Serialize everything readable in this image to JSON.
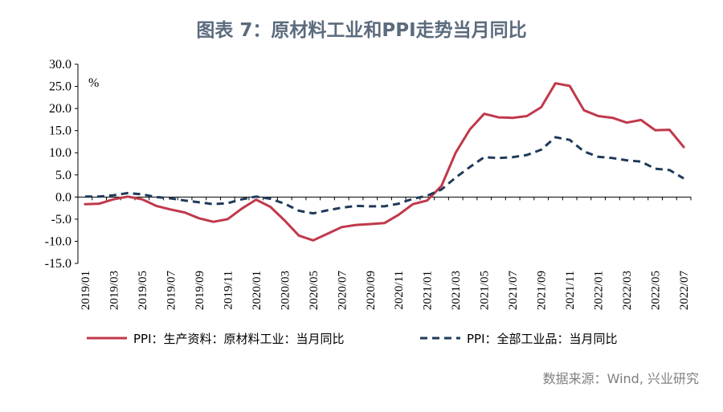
{
  "title": "图表 7：原材料工业和PPI走势当月同比",
  "source": "数据来源：Wind, 兴业研究",
  "chart_data": {
    "type": "line",
    "unit_label": "%",
    "ylim": [
      -15,
      30
    ],
    "yticks": [
      "30.0",
      "25.0",
      "20.0",
      "15.0",
      "10.0",
      "5.0",
      "0.0",
      "-5.0",
      "-10.0",
      "-15.0"
    ],
    "ytick_values": [
      30,
      25,
      20,
      15,
      10,
      5,
      0,
      -5,
      -10,
      -15
    ],
    "x": [
      "2019/01",
      "2019/02",
      "2019/03",
      "2019/04",
      "2019/05",
      "2019/06",
      "2019/07",
      "2019/08",
      "2019/09",
      "2019/10",
      "2019/11",
      "2019/12",
      "2020/01",
      "2020/02",
      "2020/03",
      "2020/04",
      "2020/05",
      "2020/06",
      "2020/07",
      "2020/08",
      "2020/09",
      "2020/10",
      "2020/11",
      "2020/12",
      "2021/01",
      "2021/02",
      "2021/03",
      "2021/04",
      "2021/05",
      "2021/06",
      "2021/07",
      "2021/08",
      "2021/09",
      "2021/10",
      "2021/11",
      "2021/12",
      "2022/01",
      "2022/02",
      "2022/03",
      "2022/04",
      "2022/05",
      "2022/06",
      "2022/07"
    ],
    "xtick_labels": [
      "2019/01",
      "2019/03",
      "2019/05",
      "2019/07",
      "2019/09",
      "2019/11",
      "2020/01",
      "2020/03",
      "2020/05",
      "2020/07",
      "2020/09",
      "2020/11",
      "2021/01",
      "2021/03",
      "2021/05",
      "2021/07",
      "2021/09",
      "2021/11",
      "2022/01",
      "2022/03",
      "2022/05",
      "2022/07"
    ],
    "legend_position": "bottom",
    "grid": false,
    "series": [
      {
        "name": "PPI：生产资料：原材料工业：当月同比",
        "color": "#c0394b",
        "style": "solid",
        "values": [
          -1.6,
          -1.5,
          -0.5,
          0.1,
          -0.5,
          -2.0,
          -2.8,
          -3.5,
          -4.8,
          -5.6,
          -5.0,
          -2.6,
          -0.6,
          -2.2,
          -5.3,
          -8.7,
          -9.8,
          -8.3,
          -6.8,
          -6.3,
          -6.1,
          -5.9,
          -4.0,
          -1.6,
          -0.8,
          2.5,
          10.0,
          15.3,
          18.8,
          18.0,
          17.9,
          18.3,
          20.3,
          25.7,
          25.1,
          19.6,
          18.3,
          17.9,
          16.8,
          17.4,
          15.1,
          15.2,
          11.3
        ]
      },
      {
        "name": "PPI：全部工业品：当月同比",
        "color": "#1f3a5a",
        "style": "dashed",
        "values": [
          0.1,
          0.1,
          0.4,
          0.9,
          0.6,
          0.0,
          -0.3,
          -0.8,
          -1.2,
          -1.6,
          -1.4,
          -0.5,
          0.1,
          -0.4,
          -1.5,
          -3.1,
          -3.7,
          -3.0,
          -2.4,
          -2.0,
          -2.1,
          -2.1,
          -1.5,
          -0.4,
          0.3,
          1.7,
          4.4,
          6.8,
          9.0,
          8.8,
          9.0,
          9.5,
          10.7,
          13.5,
          12.9,
          10.3,
          9.1,
          8.8,
          8.3,
          8.0,
          6.4,
          6.1,
          4.2
        ]
      }
    ]
  }
}
